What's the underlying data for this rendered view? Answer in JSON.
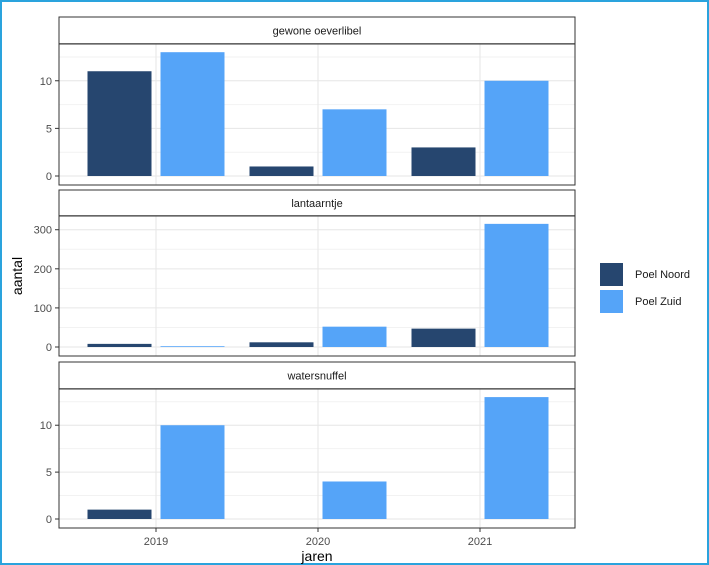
{
  "chart_data": {
    "type": "bar",
    "layout": "faceted",
    "xlabel": "jaren",
    "ylabel": "aantal",
    "categories": [
      "2019",
      "2020",
      "2021"
    ],
    "legend": {
      "position": "right",
      "entries": [
        {
          "name": "Poel Noord",
          "color": "#26466f"
        },
        {
          "name": "Poel Zuid",
          "color": "#55a4f8"
        }
      ]
    },
    "grid": true,
    "facets": [
      {
        "name": "gewone oeverlibel",
        "ylim": [
          0,
          13.65
        ],
        "yticks": [
          0,
          5,
          10
        ],
        "series": [
          {
            "name": "Poel Noord",
            "values": [
              11,
              1,
              3
            ]
          },
          {
            "name": "Poel Zuid",
            "values": [
              13,
              7,
              10
            ]
          }
        ]
      },
      {
        "name": "lantaarntje",
        "ylim": [
          0,
          330
        ],
        "yticks": [
          0,
          100,
          200,
          300
        ],
        "series": [
          {
            "name": "Poel Noord",
            "values": [
              8,
              12,
              47
            ]
          },
          {
            "name": "Poel Zuid",
            "values": [
              2,
              52,
              315
            ]
          }
        ]
      },
      {
        "name": "watersnuffel",
        "ylim": [
          0,
          13.65
        ],
        "yticks": [
          0,
          5,
          10
        ],
        "series": [
          {
            "name": "Poel Noord",
            "values": [
              1,
              0,
              0
            ]
          },
          {
            "name": "Poel Zuid",
            "values": [
              10,
              4,
              13
            ]
          }
        ]
      }
    ]
  }
}
